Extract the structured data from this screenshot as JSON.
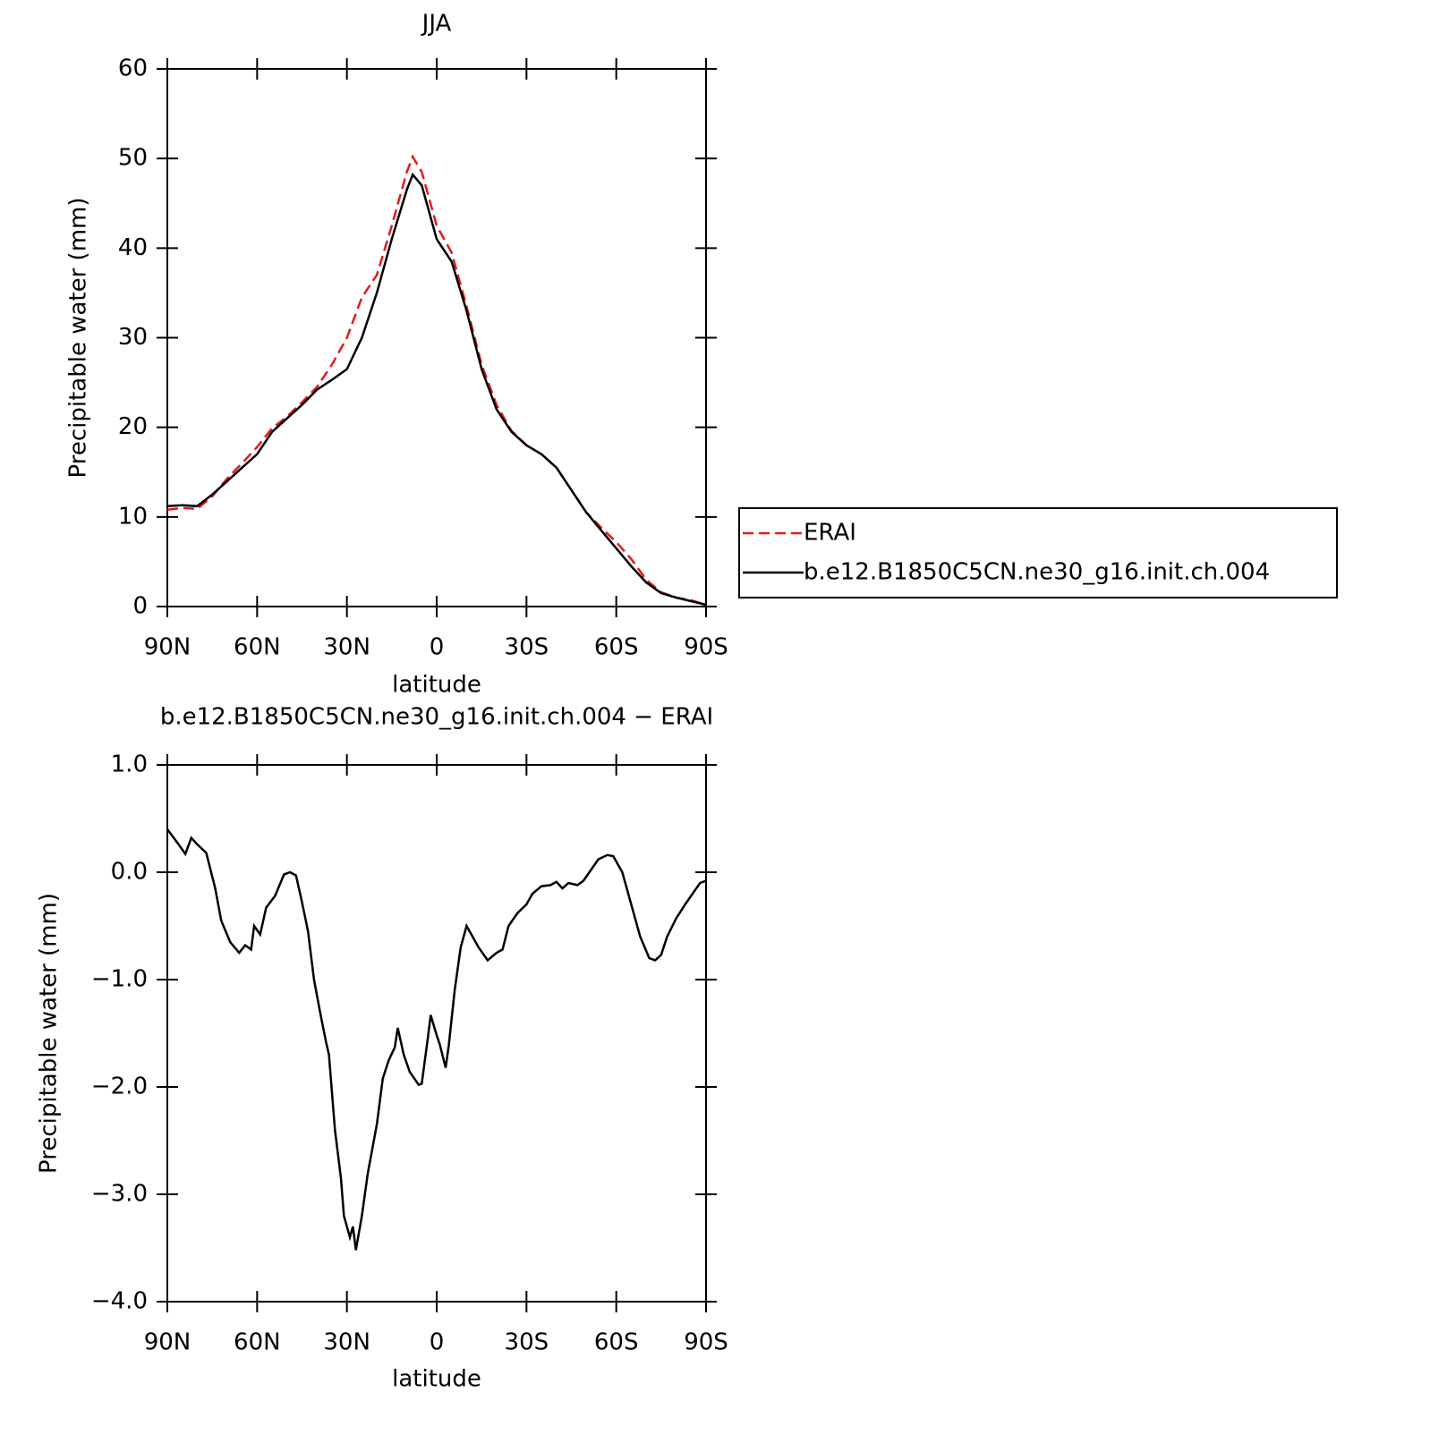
{
  "chart_data": [
    {
      "type": "line",
      "title": "JJA",
      "xlabel": "latitude",
      "ylabel": "Precipitable water (mm)",
      "x": [
        90,
        85,
        80,
        75,
        70,
        65,
        60,
        55,
        50,
        45,
        40,
        35,
        30,
        25,
        20,
        15,
        10,
        8,
        5,
        0,
        -5,
        -10,
        -15,
        -20,
        -25,
        -30,
        -35,
        -40,
        -45,
        -50,
        -55,
        -60,
        -65,
        -70,
        -75,
        -80,
        -85,
        -90
      ],
      "series": [
        {
          "name": "ERAI",
          "color": "#e41a1c",
          "line_style": "dashed",
          "values": [
            10.8,
            11,
            10.9,
            12.3,
            14.3,
            16,
            17.8,
            19.9,
            21.2,
            22.8,
            24.5,
            27,
            30,
            34.5,
            37,
            42.5,
            48.5,
            50.2,
            48.5,
            42.5,
            39.5,
            33.5,
            27,
            22.5,
            19.6,
            18,
            17,
            15.5,
            13,
            10.5,
            8.8,
            7.2,
            5.3,
            3,
            1.6,
            1,
            0.7,
            0.2
          ]
        },
        {
          "name": "b.e12.B1850C5CN.ne30_g16.init.ch.004",
          "color": "#000000",
          "line_style": "solid",
          "values": [
            11.2,
            11.3,
            11.2,
            12.5,
            14,
            15.5,
            17,
            19.5,
            21,
            22.5,
            24.2,
            25.3,
            26.5,
            30,
            35,
            41,
            46.5,
            48.2,
            47,
            41,
            38.5,
            33,
            26.5,
            22,
            19.5,
            18,
            17,
            15.5,
            13,
            10.5,
            8.5,
            6.5,
            4.5,
            2.7,
            1.5,
            1,
            0.6,
            0.2
          ]
        }
      ],
      "xlim": [
        90,
        -90
      ],
      "xticks": [
        {
          "value": 90,
          "label": "90N"
        },
        {
          "value": 60,
          "label": "60N"
        },
        {
          "value": 30,
          "label": "30N"
        },
        0,
        {
          "value": -30,
          "label": "30S"
        },
        {
          "value": -60,
          "label": "60S"
        },
        {
          "value": -90,
          "label": "90S"
        }
      ],
      "ylim": [
        0,
        60
      ],
      "yticks": [
        0,
        10,
        20,
        30,
        40,
        50,
        60
      ],
      "legend_position": "right"
    },
    {
      "type": "line",
      "title": "b.e12.B1850C5CN.ne30_g16.init.ch.004 − ERAI",
      "xlabel": "latitude",
      "ylabel": "Precipitable water (mm)",
      "x": [
        90,
        86,
        84,
        82,
        80,
        77,
        74,
        72,
        69,
        66,
        64,
        62,
        61,
        59,
        57,
        54,
        51,
        49,
        47,
        45,
        43,
        41,
        39,
        37,
        36,
        34,
        32,
        31,
        29,
        28,
        27,
        25,
        23,
        20,
        18,
        16,
        14,
        13,
        11,
        9,
        6,
        5,
        3,
        2,
        0,
        -1,
        -3,
        -4,
        -6,
        -8,
        -10,
        -12,
        -14,
        -17,
        -20,
        -22,
        -24,
        -27,
        -30,
        -32,
        -35,
        -38,
        -40,
        -42,
        -44,
        -47,
        -49,
        -51,
        -54,
        -57,
        -59,
        -62,
        -65,
        -68,
        -71,
        -73,
        -75,
        -77,
        -80,
        -83,
        -86,
        -88,
        -90
      ],
      "series": [
        {
          "color": "#000000",
          "line_style": "solid",
          "values": [
            0.4,
            0.25,
            0.17,
            0.32,
            0.26,
            0.18,
            -0.15,
            -0.45,
            -0.65,
            -0.75,
            -0.68,
            -0.72,
            -0.5,
            -0.58,
            -0.33,
            -0.22,
            -0.02,
            0,
            -0.03,
            -0.28,
            -0.55,
            -1,
            -1.3,
            -1.58,
            -1.7,
            -2.4,
            -2.85,
            -3.2,
            -3.4,
            -3.3,
            -3.52,
            -3.2,
            -2.8,
            -2.35,
            -1.92,
            -1.75,
            -1.63,
            -1.45,
            -1.7,
            -1.86,
            -1.98,
            -1.97,
            -1.55,
            -1.33,
            -1.52,
            -1.6,
            -1.82,
            -1.62,
            -1.1,
            -0.7,
            -0.5,
            -0.6,
            -0.7,
            -0.82,
            -0.75,
            -0.72,
            -0.5,
            -0.38,
            -0.3,
            -0.2,
            -0.13,
            -0.12,
            -0.09,
            -0.15,
            -0.1,
            -0.12,
            -0.08,
            0,
            0.12,
            0.16,
            0.15,
            0,
            -0.3,
            -0.6,
            -0.8,
            -0.82,
            -0.77,
            -0.6,
            -0.43,
            -0.3,
            -0.18,
            -0.1,
            -0.08
          ]
        }
      ],
      "xlim": [
        90,
        -90
      ],
      "xticks": [
        {
          "value": 90,
          "label": "90N"
        },
        {
          "value": 60,
          "label": "60N"
        },
        {
          "value": 30,
          "label": "30N"
        },
        0,
        {
          "value": -30,
          "label": "30S"
        },
        {
          "value": -60,
          "label": "60S"
        },
        {
          "value": -90,
          "label": "90S"
        }
      ],
      "ylim": [
        -4,
        1
      ],
      "yticks": [
        {
          "value": -4,
          "label": "−4.0"
        },
        {
          "value": -3,
          "label": "−3.0"
        },
        {
          "value": -2,
          "label": "−2.0"
        },
        {
          "value": -1,
          "label": "−1.0"
        },
        {
          "value": 0,
          "label": "0.0"
        },
        {
          "value": 1,
          "label": "1.0"
        }
      ]
    }
  ]
}
